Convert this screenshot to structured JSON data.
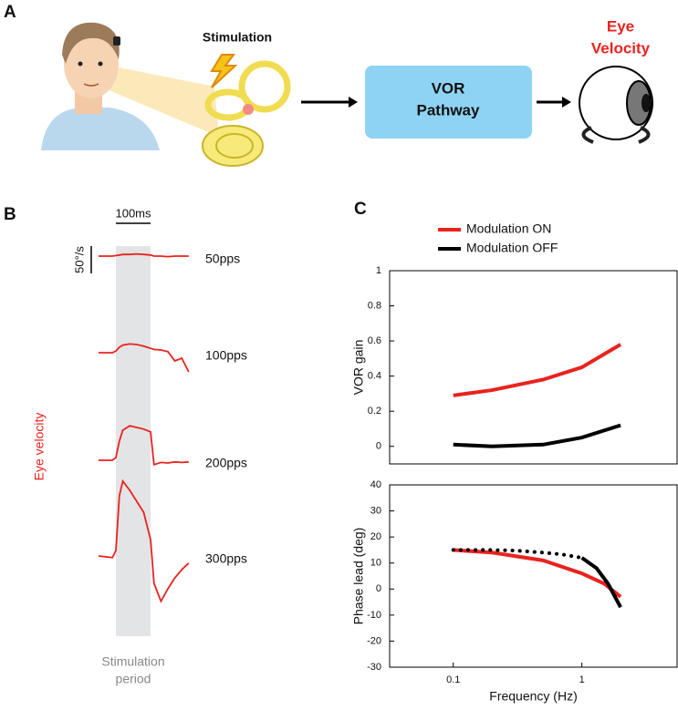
{
  "panel_labels": [
    "A",
    "B",
    "C"
  ],
  "diagram": {
    "stimulation": "Stimulation",
    "pathway": [
      "VOR",
      "Pathway"
    ],
    "output": [
      "Eye",
      "Velocity"
    ]
  },
  "chart_data": [
    {
      "type": "trace",
      "ylabel": "Eye velocity",
      "x": [
        -50,
        -10,
        0,
        10,
        20,
        40,
        60,
        80,
        100,
        110,
        130,
        150,
        170,
        190,
        210
      ],
      "scale_bars": {
        "time": {
          "value": 100,
          "label": "100ms"
        },
        "velocity": {
          "value": 50,
          "label": "50°/s"
        }
      },
      "shaded": {
        "range": [
          0,
          100
        ],
        "label": [
          "Stimulation",
          "period"
        ]
      },
      "series": [
        {
          "name": "50pps",
          "color": "#e8231f",
          "values": [
            0,
            0,
            1,
            2,
            3,
            3,
            4,
            3,
            2,
            0,
            0,
            -1,
            0,
            0,
            0
          ]
        },
        {
          "name": "100pps",
          "color": "#e8231f",
          "values": [
            0,
            0,
            3,
            10,
            14,
            16,
            15,
            12,
            8,
            6,
            5,
            2,
            -15,
            -10,
            -35
          ]
        },
        {
          "name": "200pps",
          "color": "#e8231f",
          "values": [
            0,
            0,
            5,
            35,
            55,
            63,
            60,
            57,
            52,
            -8,
            -4,
            -5,
            -3,
            -4,
            -3
          ]
        },
        {
          "name": "300pps",
          "color": "#e8231f",
          "values": [
            0,
            -3,
            10,
            110,
            137,
            120,
            100,
            80,
            30,
            -50,
            -83,
            -60,
            -40,
            -25,
            -13
          ]
        }
      ]
    },
    {
      "type": "line",
      "ylabel": "VOR gain",
      "xscale": "log",
      "xlim": [
        0.032,
        5.5
      ],
      "ylim": [
        -0.1,
        1
      ],
      "yticks": [
        0,
        0.2,
        0.4,
        0.6,
        0.8,
        1
      ],
      "legend": "top",
      "series": [
        {
          "name": "Modulation ON",
          "color": "#e8231f",
          "x": [
            0.1,
            0.2,
            0.5,
            1,
            2
          ],
          "values": [
            0.29,
            0.32,
            0.38,
            0.45,
            0.58
          ]
        },
        {
          "name": "Modulation OFF",
          "color": "#000000",
          "x": [
            0.1,
            0.2,
            0.5,
            1,
            2
          ],
          "values": [
            0.01,
            0,
            0.01,
            0.05,
            0.12
          ]
        }
      ]
    },
    {
      "type": "line",
      "ylabel": "Phase lead (deg)",
      "xlabel": "Frequency (Hz)",
      "xscale": "log",
      "xlim": [
        0.032,
        5.5
      ],
      "ylim": [
        -30,
        40
      ],
      "yticks": [
        -30,
        -20,
        -10,
        0,
        10,
        20,
        30,
        40
      ],
      "xticks": [
        0.1,
        1
      ],
      "series": [
        {
          "color": "#e8231f",
          "x": [
            0.1,
            0.2,
            0.5,
            1,
            1.5,
            2
          ],
          "values": [
            15,
            14,
            11,
            6,
            2,
            -3
          ]
        },
        {
          "color": "#000000",
          "dotted_to": 1,
          "x": [
            0.1,
            0.15,
            0.2,
            0.3,
            0.5,
            0.7,
            1,
            1.3,
            1.6,
            2
          ],
          "values": [
            15,
            15,
            15,
            14.8,
            14,
            13.3,
            12,
            8,
            2,
            -7
          ]
        }
      ]
    }
  ]
}
